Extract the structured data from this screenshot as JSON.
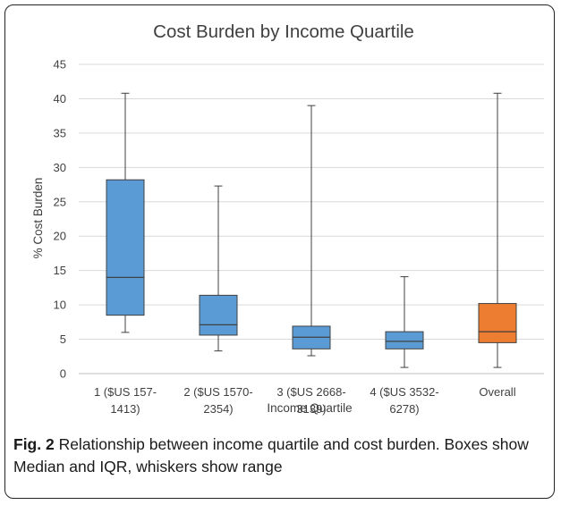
{
  "chart_data": {
    "type": "boxplot",
    "title": "Cost Burden by Income Quartile",
    "xlabel": "Income Quartile",
    "ylabel": "% Cost Burden",
    "ylim": [
      0,
      45
    ],
    "yticks": [
      0,
      5,
      10,
      15,
      20,
      25,
      30,
      35,
      40,
      45
    ],
    "grid": true,
    "categories": [
      [
        "1 ($US 157-",
        "1413)"
      ],
      [
        "2 ($US 1570-",
        "2354)"
      ],
      [
        "3 ($US 2668-",
        "3139)"
      ],
      [
        "4 ($US 3532-",
        "6278)"
      ],
      [
        "Overall"
      ]
    ],
    "boxes": [
      {
        "min": 6.0,
        "q1": 8.5,
        "median": 14.0,
        "q3": 28.2,
        "max": 40.8,
        "color": "#5b9bd5"
      },
      {
        "min": 3.3,
        "q1": 5.6,
        "median": 7.1,
        "q3": 11.4,
        "max": 27.3,
        "color": "#5b9bd5"
      },
      {
        "min": 2.6,
        "q1": 3.6,
        "median": 5.3,
        "q3": 6.9,
        "max": 39.0,
        "color": "#5b9bd5"
      },
      {
        "min": 0.9,
        "q1": 3.6,
        "median": 4.7,
        "q3": 6.1,
        "max": 14.1,
        "color": "#5b9bd5"
      },
      {
        "min": 0.9,
        "q1": 4.5,
        "median": 6.1,
        "q3": 10.2,
        "max": 40.8,
        "color": "#ed7d31"
      }
    ]
  },
  "caption": {
    "label": "Fig. 2",
    "text": " Relationship between income quartile and cost burden. Boxes show Median and IQR, whiskers show range"
  }
}
